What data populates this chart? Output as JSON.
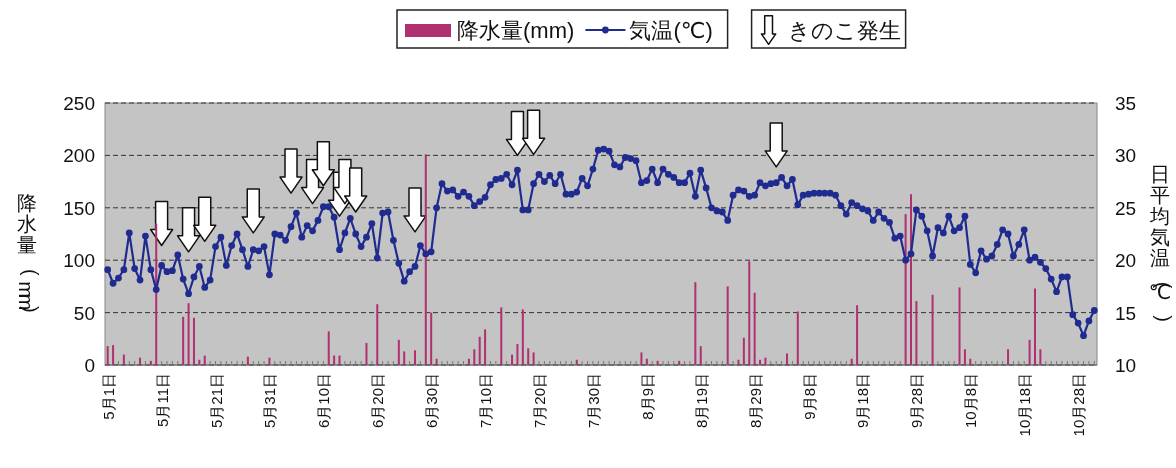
{
  "chart_data": {
    "type": "bar",
    "ylabel": "降水量(mm)",
    "y2label": "日平均気温(℃)",
    "categories": [
      "5月1日",
      null,
      null,
      null,
      null,
      null,
      null,
      null,
      null,
      null,
      "5月11日",
      null,
      null,
      null,
      null,
      null,
      null,
      null,
      null,
      null,
      "5月21日",
      null,
      null,
      null,
      null,
      null,
      null,
      null,
      null,
      null,
      "5月31日",
      null,
      null,
      null,
      null,
      null,
      null,
      null,
      null,
      null,
      "6月10日",
      null,
      null,
      null,
      null,
      null,
      null,
      null,
      null,
      null,
      "6月20日",
      null,
      null,
      null,
      null,
      null,
      null,
      null,
      null,
      null,
      "6月30日",
      null,
      null,
      null,
      null,
      null,
      null,
      null,
      null,
      null,
      "7月10日",
      null,
      null,
      null,
      null,
      null,
      null,
      null,
      null,
      null,
      "7月20日",
      null,
      null,
      null,
      null,
      null,
      null,
      null,
      null,
      null,
      "7月30日",
      null,
      null,
      null,
      null,
      null,
      null,
      null,
      null,
      null,
      "8月9日",
      null,
      null,
      null,
      null,
      null,
      null,
      null,
      null,
      null,
      "8月19日",
      null,
      null,
      null,
      null,
      null,
      null,
      null,
      null,
      null,
      "8月29日",
      null,
      null,
      null,
      null,
      null,
      null,
      null,
      null,
      null,
      "9月8日",
      null,
      null,
      null,
      null,
      null,
      null,
      null,
      null,
      null,
      "9月18日",
      null,
      null,
      null,
      null,
      null,
      null,
      null,
      null,
      null,
      "9月28日",
      null,
      null,
      null,
      null,
      null,
      null,
      null,
      null,
      null,
      "10月8日",
      null,
      null,
      null,
      null,
      null,
      null,
      null,
      null,
      null,
      "10月18日",
      null,
      null,
      null,
      null,
      null,
      null,
      null,
      null,
      null,
      "10月28日",
      null,
      null,
      null
    ],
    "series": [
      {
        "name": "降水量(mm)",
        "color": "#b03070",
        "values": [
          18,
          19,
          0,
          10,
          0,
          0,
          7,
          0,
          4,
          135,
          0,
          0,
          0,
          0,
          46,
          59,
          45,
          5,
          9,
          0,
          0,
          0,
          0,
          0,
          0,
          0,
          8,
          0,
          0,
          0,
          7,
          0,
          0,
          0,
          0,
          0,
          0,
          0,
          0,
          0,
          0,
          32,
          9,
          9,
          0,
          0,
          0,
          0,
          21,
          0,
          58,
          0,
          0,
          0,
          24,
          13,
          0,
          14,
          0,
          201,
          50,
          6,
          0,
          0,
          0,
          0,
          0,
          6,
          15,
          27,
          34,
          0,
          0,
          55,
          0,
          10,
          20,
          53,
          16,
          12,
          0,
          0,
          0,
          0,
          0,
          0,
          0,
          5,
          0,
          0,
          0,
          0,
          0,
          0,
          0,
          0,
          0,
          0,
          0,
          12,
          6,
          0,
          4,
          0,
          0,
          0,
          4,
          0,
          0,
          79,
          18,
          0,
          0,
          0,
          0,
          75,
          0,
          5,
          26,
          99,
          69,
          5,
          7,
          0,
          0,
          0,
          11,
          0,
          51,
          0,
          0,
          0,
          0,
          0,
          0,
          0,
          0,
          0,
          6,
          57,
          0,
          0,
          0,
          0,
          0,
          0,
          0,
          0,
          144,
          163,
          61,
          0,
          0,
          67,
          0,
          0,
          0,
          0,
          74,
          15,
          6,
          0,
          0,
          0,
          0,
          0,
          0,
          15,
          0,
          0,
          0,
          24,
          73,
          15,
          0,
          0,
          0,
          0,
          0,
          0,
          0,
          0,
          0,
          0
        ]
      },
      {
        "name": "気温(℃)",
        "type": "line",
        "axis": "y2",
        "color": "#1f2b8f",
        "marker": "circle",
        "values": [
          19.1,
          17.8,
          18.3,
          19.1,
          22.6,
          19.2,
          18.1,
          22.3,
          19.1,
          17.2,
          19.5,
          18.9,
          19.0,
          20.5,
          18.2,
          16.8,
          18.4,
          19.4,
          17.4,
          18.1,
          21.3,
          22.2,
          19.5,
          21.4,
          22.5,
          21.0,
          19.4,
          21.0,
          20.9,
          21.3,
          18.6,
          22.5,
          22.4,
          21.9,
          23.2,
          24.5,
          22.2,
          23.3,
          22.8,
          23.8,
          25.1,
          25.1,
          24.1,
          21.0,
          22.6,
          24.0,
          22.5,
          21.3,
          22.2,
          23.5,
          20.2,
          24.5,
          24.6,
          21.9,
          19.7,
          18.0,
          18.9,
          19.4,
          21.4,
          20.6,
          20.8,
          25.0,
          27.3,
          26.6,
          26.7,
          26.1,
          26.5,
          26.1,
          25.2,
          25.6,
          26.0,
          27.2,
          27.7,
          27.8,
          28.2,
          27.2,
          28.6,
          24.8,
          24.8,
          27.3,
          28.2,
          27.5,
          28.1,
          27.3,
          28.2,
          26.3,
          26.3,
          26.5,
          27.8,
          27.1,
          28.7,
          30.5,
          30.6,
          30.4,
          29.1,
          28.9,
          29.8,
          29.7,
          29.5,
          27.4,
          27.6,
          28.7,
          27.4,
          28.7,
          28.2,
          27.9,
          27.4,
          27.4,
          28.3,
          26.1,
          28.6,
          26.9,
          25.0,
          24.7,
          24.6,
          23.8,
          26.2,
          26.7,
          26.6,
          26.1,
          26.2,
          27.4,
          27.1,
          27.3,
          27.4,
          27.9,
          27.1,
          27.7,
          25.3,
          26.2,
          26.3,
          26.4,
          26.4,
          26.4,
          26.4,
          26.2,
          25.2,
          24.4,
          25.5,
          25.2,
          24.9,
          24.7,
          23.8,
          24.6,
          24.0,
          23.6,
          22.1,
          22.3,
          20.0,
          20.6,
          24.8,
          24.2,
          22.8,
          20.4,
          23.1,
          22.6,
          24.2,
          22.8,
          23.1,
          24.2,
          19.6,
          18.8,
          20.9,
          20.1,
          20.4,
          21.5,
          22.9,
          22.5,
          20.4,
          21.5,
          22.9,
          20.0,
          20.3,
          19.8,
          19.2,
          18.2,
          17.0,
          18.4,
          18.4,
          14.8,
          14.0,
          12.8,
          14.2,
          15.2
        ]
      },
      {
        "name": "きのこ発生",
        "type": "scatter",
        "axis": "y2",
        "color": "#ffffff",
        "marker": "triangle",
        "values": [
          null,
          null,
          null,
          null,
          null,
          null,
          null,
          null,
          null,
          null,
          23.5,
          null,
          null,
          null,
          null,
          22.9,
          null,
          null,
          23.9,
          null,
          null,
          null,
          null,
          null,
          null,
          null,
          null,
          24.7,
          null,
          null,
          null,
          null,
          null,
          null,
          28.5,
          null,
          null,
          null,
          27.5,
          null,
          29.2,
          null,
          null,
          26.3,
          27.5,
          null,
          26.7,
          null,
          null,
          null,
          null,
          null,
          null,
          null,
          null,
          null,
          null,
          24.8,
          null,
          null,
          null,
          null,
          null,
          null,
          null,
          null,
          null,
          null,
          null,
          null,
          null,
          null,
          null,
          null,
          null,
          null,
          32.1,
          null,
          null,
          32.2,
          null,
          null,
          null,
          null,
          null,
          null,
          null,
          null,
          null,
          null,
          null,
          null,
          null,
          null,
          null,
          null,
          null,
          null,
          null,
          null,
          null,
          null,
          null,
          null,
          null,
          null,
          null,
          null,
          null,
          null,
          null,
          null,
          null,
          null,
          null,
          null,
          null,
          null,
          null,
          null,
          null,
          null,
          null,
          null,
          31.0,
          null,
          null,
          null,
          null,
          null,
          null,
          null,
          null,
          null,
          null,
          null,
          null,
          null,
          null,
          null,
          null,
          null,
          null,
          null,
          null,
          null,
          null,
          null,
          null,
          null,
          null,
          null,
          null,
          null,
          null,
          null,
          null,
          null,
          null,
          null,
          null,
          null,
          null,
          null,
          null,
          null,
          null,
          null,
          null,
          null,
          null,
          null,
          null,
          null,
          null,
          null,
          null,
          null,
          null,
          null,
          null,
          null,
          null,
          null
        ]
      }
    ],
    "ylim": [
      0,
      250
    ],
    "yticks": [
      0,
      50,
      100,
      150,
      200,
      250
    ],
    "y2lim": [
      10,
      35
    ],
    "y2ticks": [
      10,
      15,
      20,
      25,
      30,
      35
    ],
    "grid": "y",
    "legend": "top"
  }
}
